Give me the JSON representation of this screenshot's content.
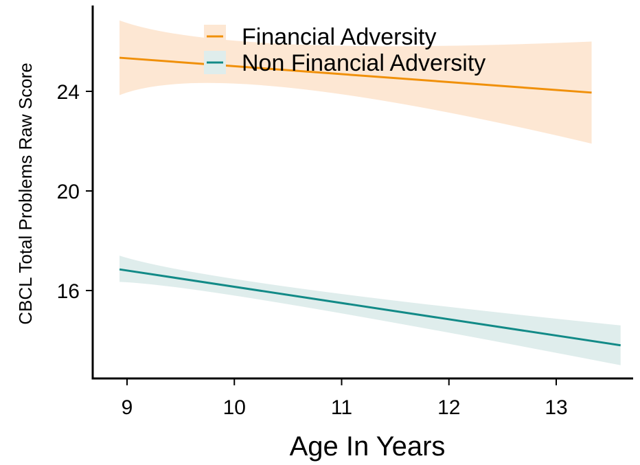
{
  "chart_data": {
    "type": "line",
    "xlabel": "Age In Years",
    "ylabel": "CBCL Total Problems Raw Score",
    "x_ticks": [
      9,
      10,
      11,
      12,
      13
    ],
    "y_ticks": [
      16,
      20,
      24
    ],
    "xlim": [
      8.7,
      13.7
    ],
    "ylim": [
      12.5,
      28.2
    ],
    "grid": false,
    "legend_position": "top",
    "series": [
      {
        "name": "Financial Adversity",
        "color": "#F0900A",
        "band_color": "#FDE7D3",
        "x": [
          8.93,
          10.5,
          13.33
        ],
        "y": [
          25.35,
          24.95,
          23.95
        ],
        "ci_lower": [
          23.85,
          24.15,
          21.9
        ],
        "ci_upper": [
          26.85,
          25.9,
          26.0
        ]
      },
      {
        "name": "Non Financial Adversity",
        "color": "#128A87",
        "band_color": "#DFEDEC",
        "x": [
          8.93,
          10.5,
          13.6
        ],
        "y": [
          16.85,
          15.8,
          13.8
        ],
        "ci_lower": [
          16.35,
          15.45,
          13.0
        ],
        "ci_upper": [
          17.4,
          16.15,
          14.6
        ]
      }
    ]
  }
}
